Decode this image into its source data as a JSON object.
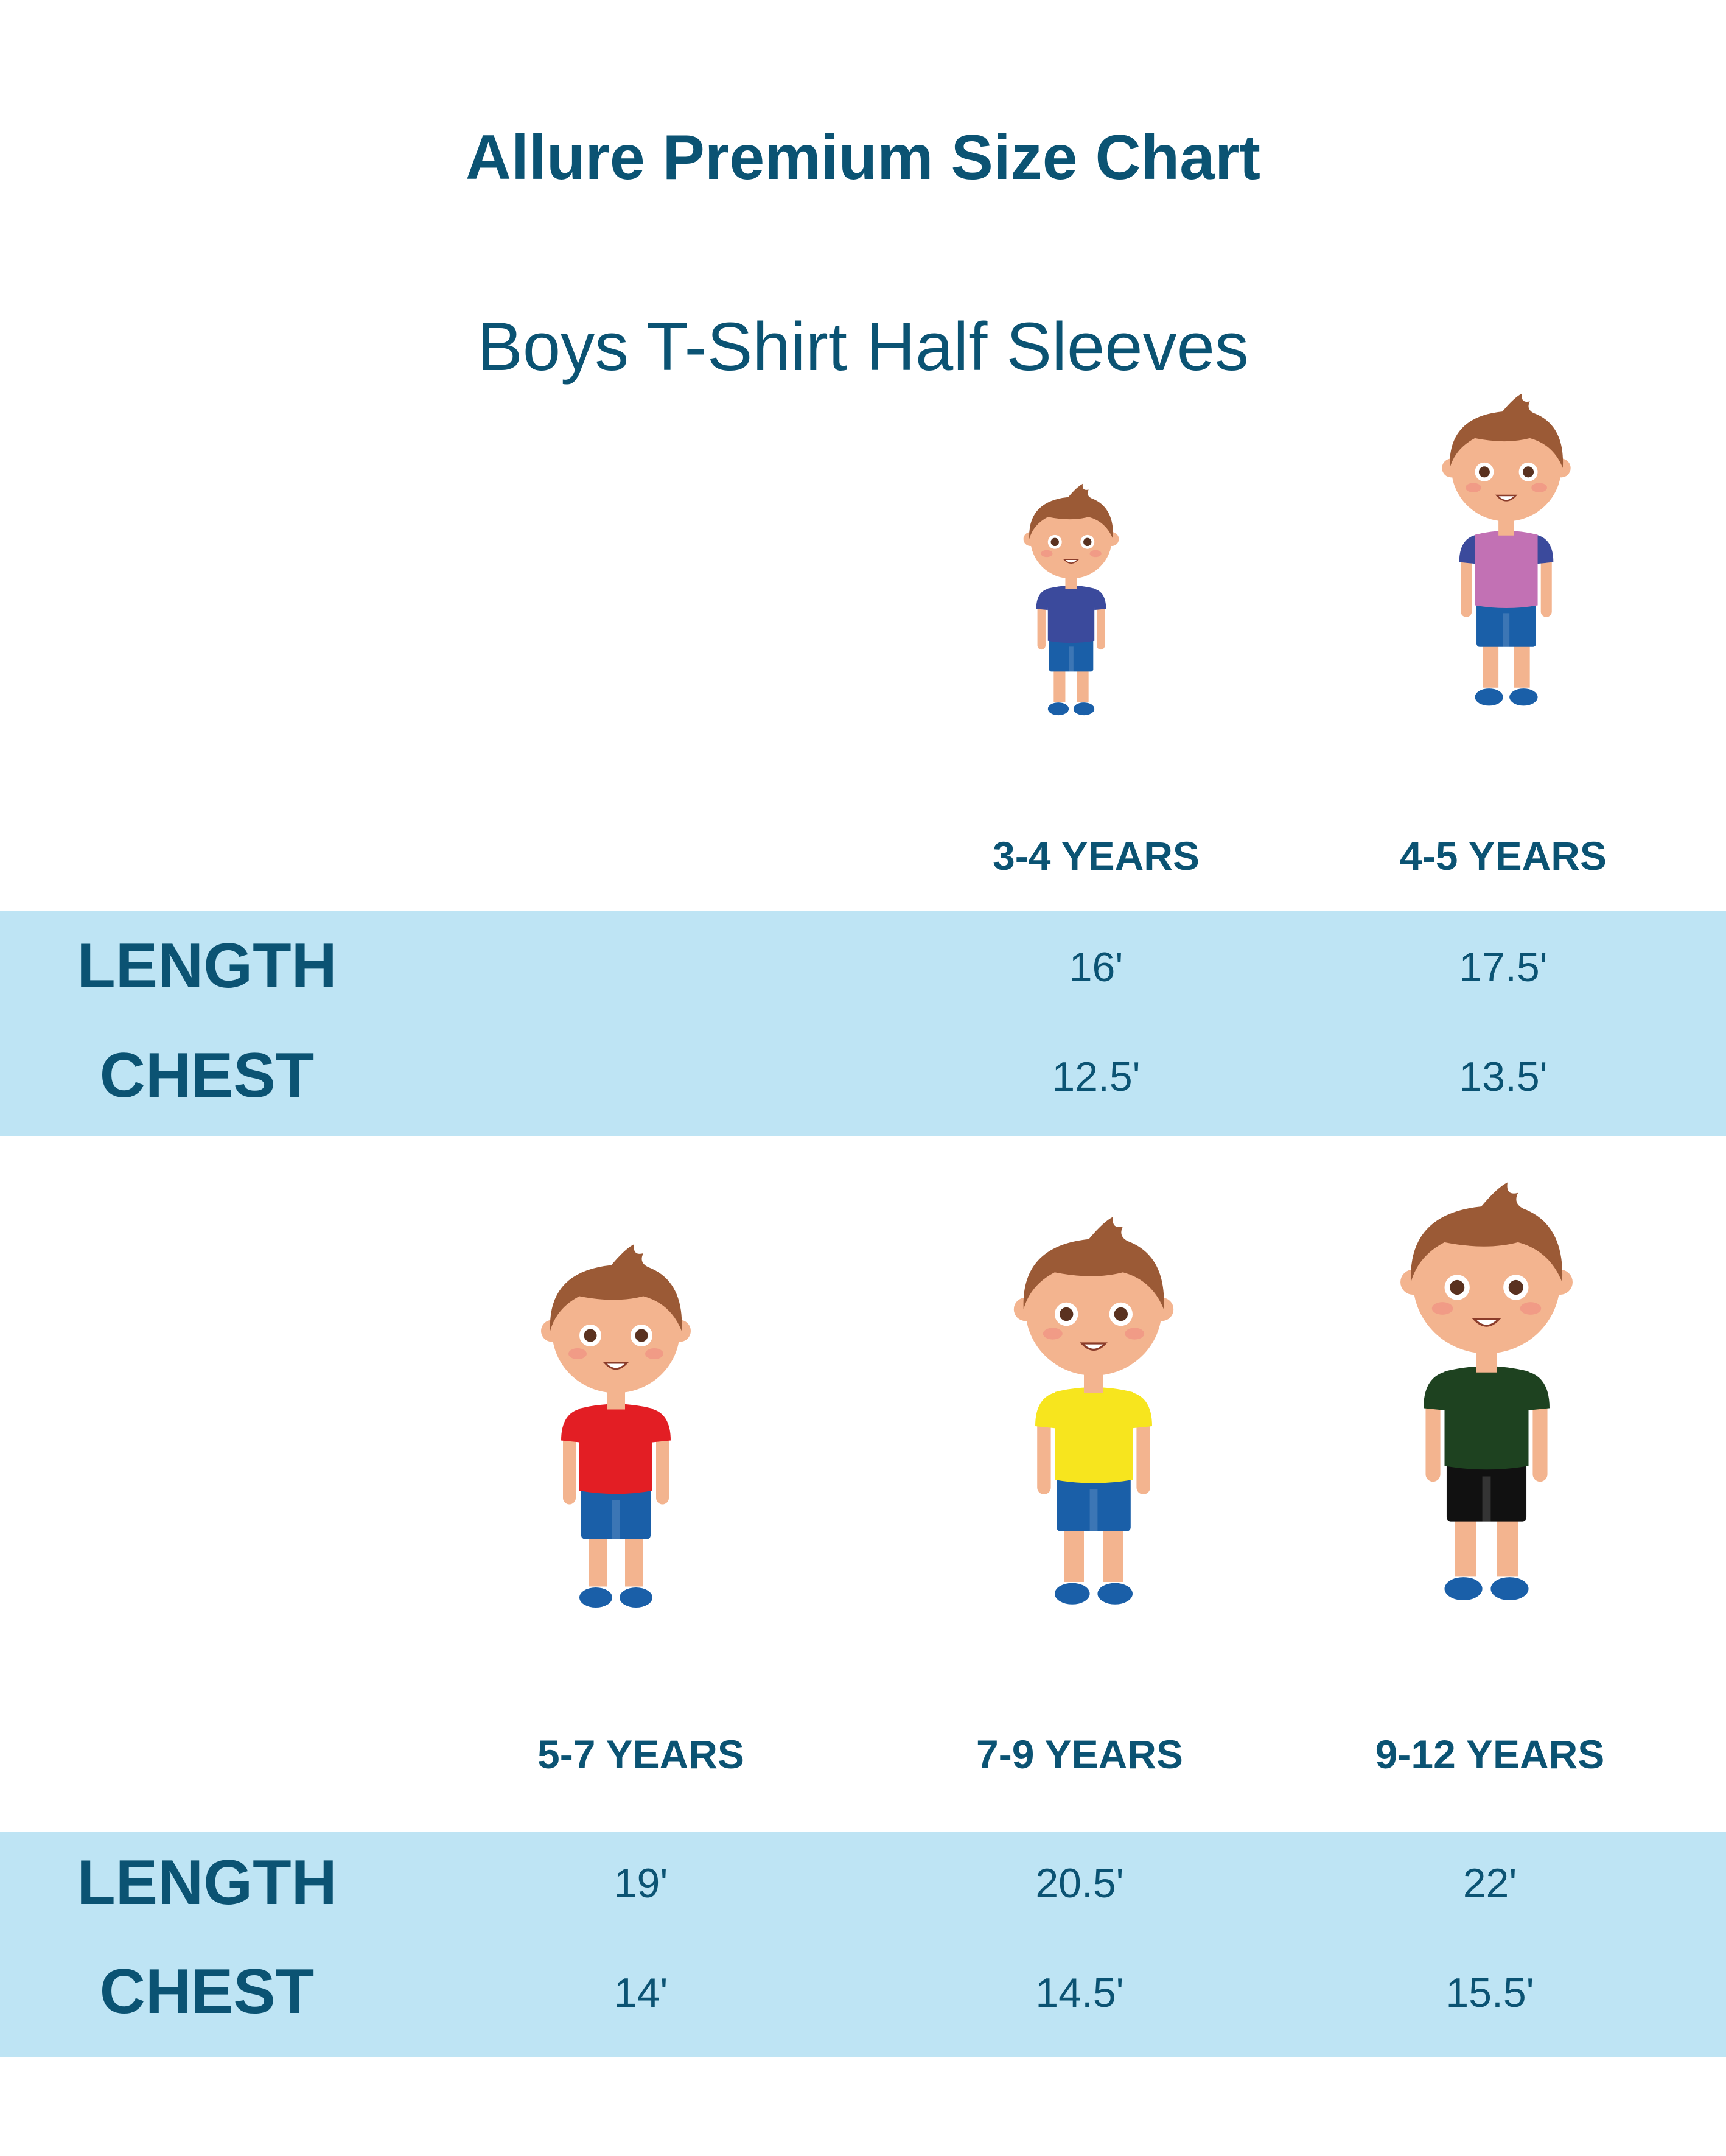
{
  "title": "Allure Premium Size Chart",
  "subtitle": "Boys T-Shirt Half Sleeves",
  "row_labels": {
    "length": "LENGTH",
    "chest": "CHEST"
  },
  "colors": {
    "text": "#0b5373",
    "band": "#bee4f4"
  },
  "sizes": [
    {
      "label": "3-4 YEARS",
      "length": "16'",
      "chest": "12.5'",
      "shirt": "#3b4a9c",
      "sleeve": "#3b4a9c",
      "shorts": "#1a5fa8"
    },
    {
      "label": "4-5 YEARS",
      "length": "17.5'",
      "chest": "13.5'",
      "shirt": "#c271b4",
      "sleeve": "#3b4a9c",
      "shorts": "#1a5fa8"
    },
    {
      "label": "5-7 YEARS",
      "length": "19'",
      "chest": "14'",
      "shirt": "#e31e24",
      "sleeve": "#e31e24",
      "shorts": "#1a5fa8"
    },
    {
      "label": "7-9 YEARS",
      "length": "20.5'",
      "chest": "14.5'",
      "shirt": "#f7e51e",
      "sleeve": "#f7e51e",
      "shorts": "#1a5fa8"
    },
    {
      "label": "9-12 YEARS",
      "length": "22'",
      "chest": "15.5'",
      "shirt": "#1e4220",
      "sleeve": "#1e4220",
      "shorts": "#111111"
    }
  ]
}
